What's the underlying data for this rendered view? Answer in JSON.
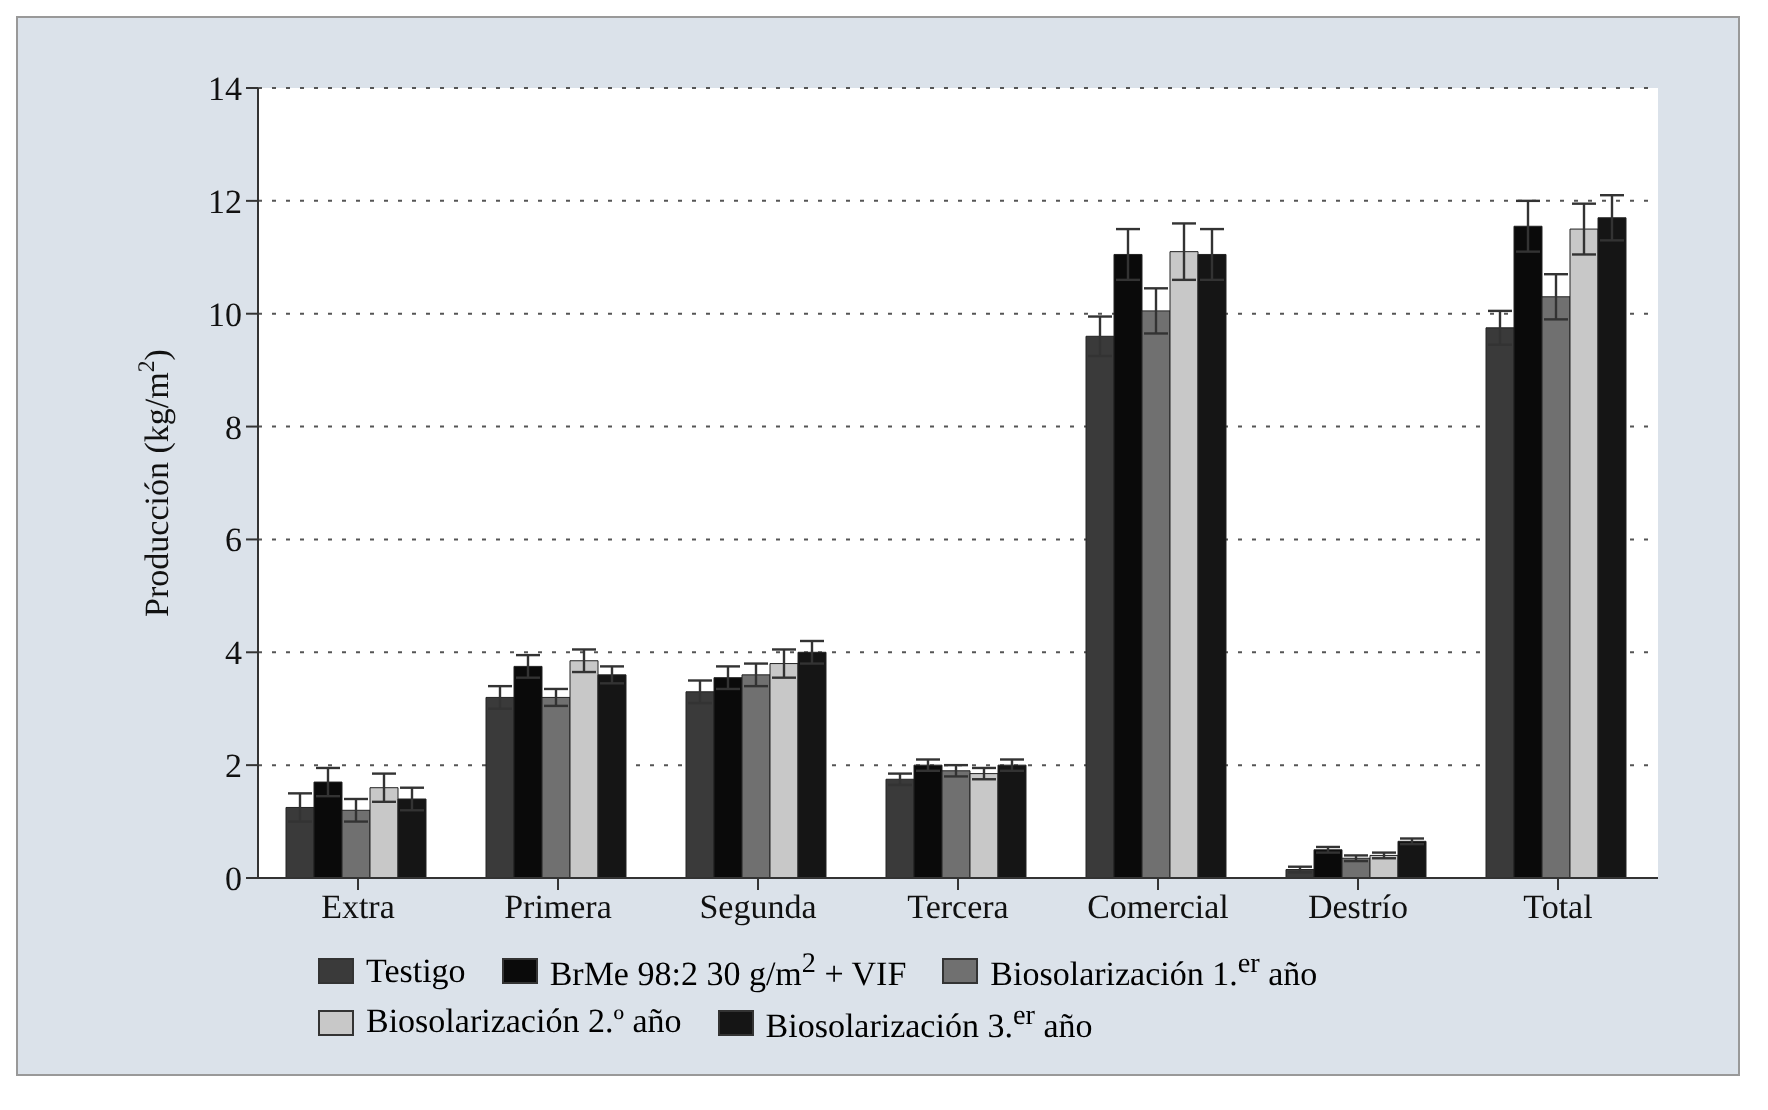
{
  "chart_data": {
    "type": "bar",
    "ylabel": "Producción (kg/m$^{2}$)",
    "categories": [
      "Extra",
      "Primera",
      "Segunda",
      "Tercera",
      "Comercial",
      "Destrío",
      "Total"
    ],
    "series": [
      {
        "name": "Testigo",
        "color": "#3a3a3a",
        "values": [
          1.25,
          3.2,
          3.3,
          1.75,
          9.6,
          0.15,
          9.75
        ],
        "errors": [
          0.25,
          0.2,
          0.2,
          0.1,
          0.35,
          0.05,
          0.3
        ]
      },
      {
        "name": "BrMe 98:2 30 g/m$^{2}$ + VIF",
        "color": "#0a0a0a",
        "values": [
          1.7,
          3.75,
          3.55,
          2.0,
          11.05,
          0.5,
          11.55
        ],
        "errors": [
          0.25,
          0.2,
          0.2,
          0.1,
          0.45,
          0.05,
          0.45
        ]
      },
      {
        "name": "Biosolarización 1.$^{er}$ año",
        "color": "#707070",
        "values": [
          1.2,
          3.2,
          3.6,
          1.9,
          10.05,
          0.35,
          10.3
        ],
        "errors": [
          0.2,
          0.15,
          0.2,
          0.1,
          0.4,
          0.05,
          0.4
        ]
      },
      {
        "name": "Biosolarización 2.º año",
        "color": "#c8c8c8",
        "values": [
          1.6,
          3.85,
          3.8,
          1.85,
          11.1,
          0.4,
          11.5
        ],
        "errors": [
          0.25,
          0.2,
          0.25,
          0.1,
          0.5,
          0.05,
          0.45
        ]
      },
      {
        "name": "Biosolarización 3.$^{er}$ año",
        "color": "#151515",
        "values": [
          1.4,
          3.6,
          4.0,
          2.0,
          11.05,
          0.65,
          11.7
        ],
        "errors": [
          0.2,
          0.15,
          0.2,
          0.1,
          0.45,
          0.05,
          0.4
        ]
      }
    ],
    "ylim": [
      0,
      14
    ],
    "yticks": [
      0,
      2,
      4,
      6,
      8,
      10,
      12,
      14
    ],
    "grid": "y",
    "legend": "bottom"
  }
}
